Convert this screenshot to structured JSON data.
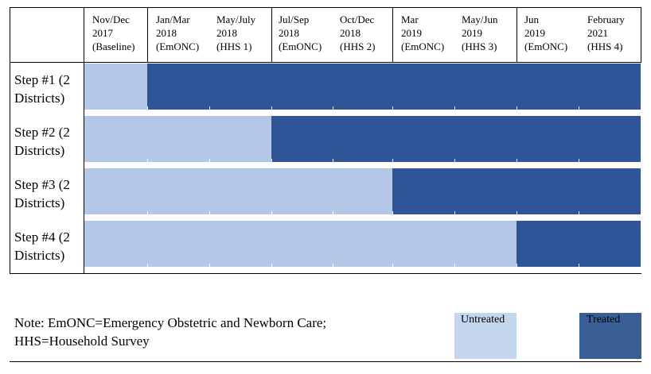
{
  "columns": [
    {
      "period": "Nov/Dec\n2017",
      "event": "(Baseline)"
    },
    {
      "period": "Jan/Mar\n2018",
      "event": "(EmONC)"
    },
    {
      "period": "May/July\n2018",
      "event": "(HHS 1)"
    },
    {
      "period": "Jul/Sep\n2018",
      "event": "(EmONC)"
    },
    {
      "period": "Oct/Dec\n2018",
      "event": "(HHS 2)"
    },
    {
      "period": "Mar\n2019",
      "event": "(EmONC)"
    },
    {
      "period": "May/Jun\n2019",
      "event": "(HHS 3)"
    },
    {
      "period": "Jun\n2019",
      "event": "(EmONC)"
    },
    {
      "period": "February\n2021",
      "event": "(HHS 4)"
    }
  ],
  "steps": [
    {
      "label": "Step #1 (2\nDistricts)",
      "untreated_periods": 1
    },
    {
      "label": "Step #2 (2\nDistricts)",
      "untreated_periods": 3
    },
    {
      "label": "Step #3 (2\nDistricts)",
      "untreated_periods": 5
    },
    {
      "label": "Step #4 (2\nDistricts)",
      "untreated_periods": 7
    }
  ],
  "note": "Note: EmONC=Emergency Obstetric and Newborn Care;\nHHS=Household Survey",
  "legend": {
    "untreated_label": "Untreated",
    "treated_label": "Treated"
  },
  "colors": {
    "untreated": "#b4c7e7",
    "treated": "#2f5597",
    "legend_untreated": "#c5d6ef",
    "legend_treated": "#3a5f95"
  }
}
